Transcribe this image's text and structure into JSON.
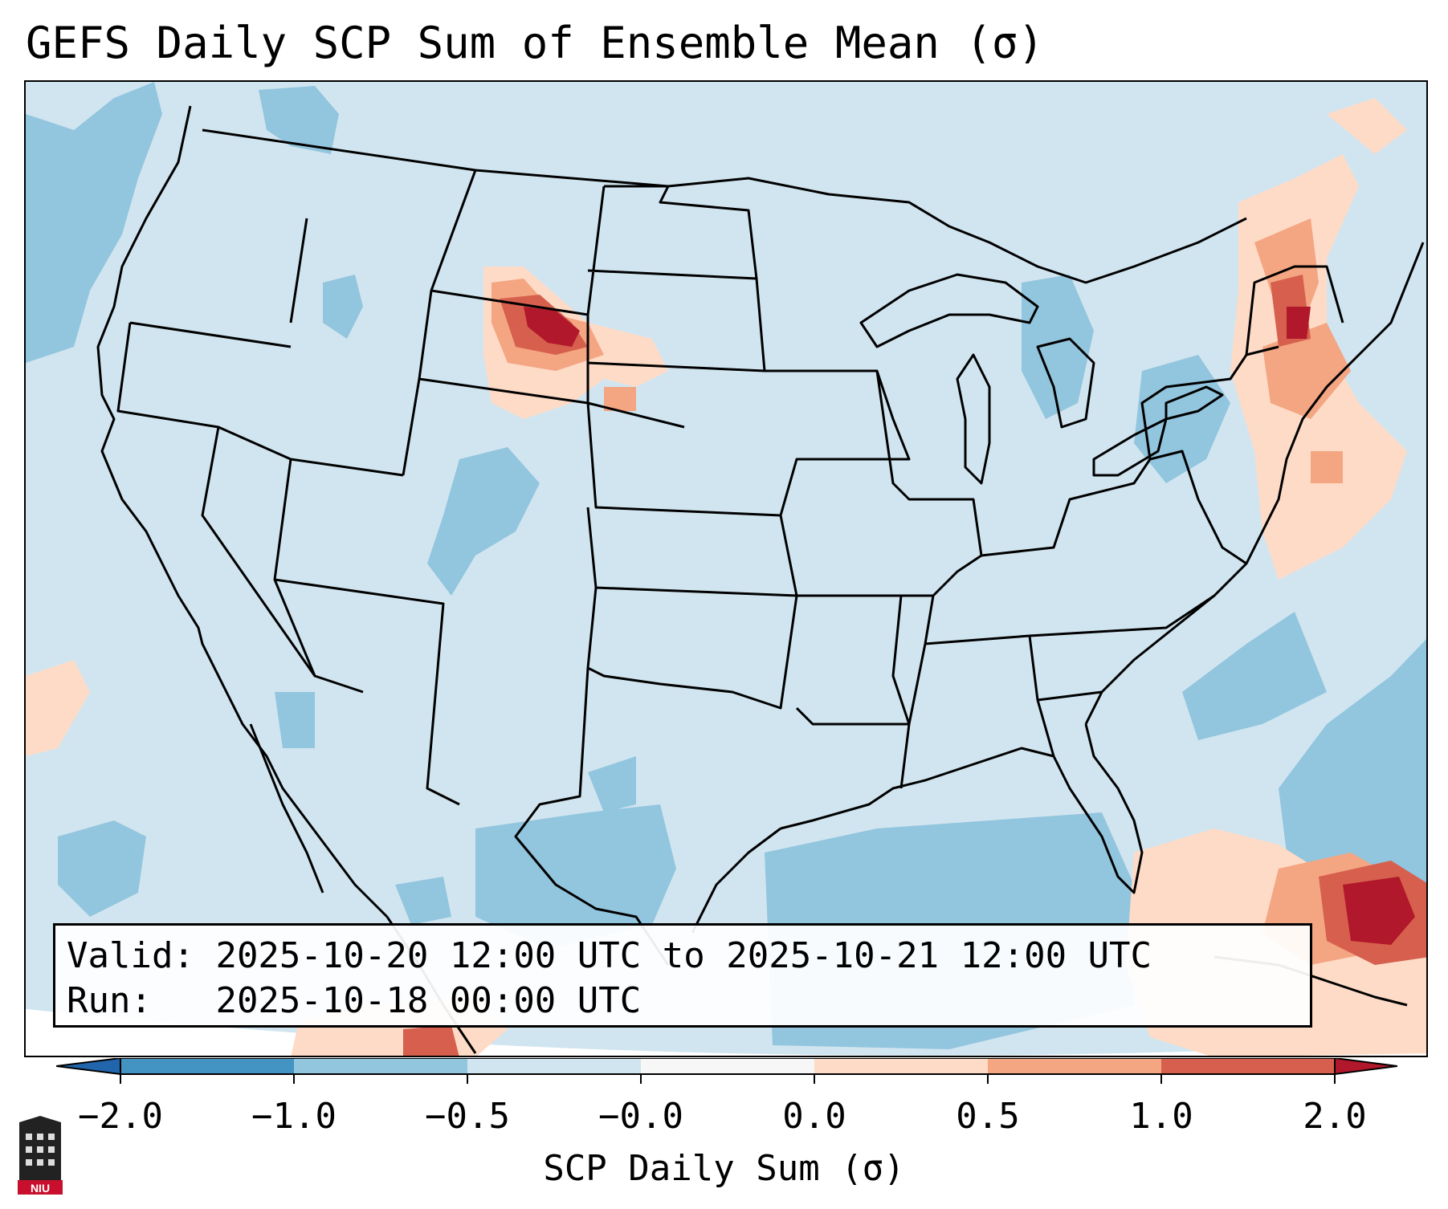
{
  "title": "GEFS Daily SCP Sum of Ensemble Mean (σ)",
  "infobox": {
    "valid_label": "Valid:",
    "valid_value": "2025-10-20 12:00 UTC to 2025-10-21 12:00 UTC",
    "run_label": "Run:",
    "run_value": "2025-10-18 00:00 UTC"
  },
  "colorbar": {
    "label": "SCP Daily Sum (σ)",
    "tick_labels": [
      "−2.0",
      "−1.0",
      "−0.5",
      "−0.0",
      "0.0",
      "0.5",
      "1.0",
      "2.0"
    ],
    "colors": [
      "#4393c3",
      "#92c5de",
      "#d1e5f0",
      "#f7f7f7",
      "#fddbc7",
      "#f4a582",
      "#d6604d",
      "#b2182b"
    ],
    "extend_low_color": "#2166ac",
    "extend_high_color": "#b2182b"
  },
  "logo": {
    "text": "NIU"
  },
  "map": {
    "region": "Contiguous United States",
    "background_color": "#d1e5f0",
    "anomalies": [
      {
        "region": "Wyoming / Nebraska Panhandle",
        "sigma": 2.0
      },
      {
        "region": "New England",
        "sigma": 1.5
      },
      {
        "region": "Bahamas / Caribbean",
        "sigma": 2.0
      },
      {
        "region": "Gulf of Mexico",
        "sigma": -1.0
      },
      {
        "region": "Western Atlantic",
        "sigma": -1.0
      },
      {
        "region": "Northeast Pacific",
        "sigma": -1.0
      }
    ]
  }
}
